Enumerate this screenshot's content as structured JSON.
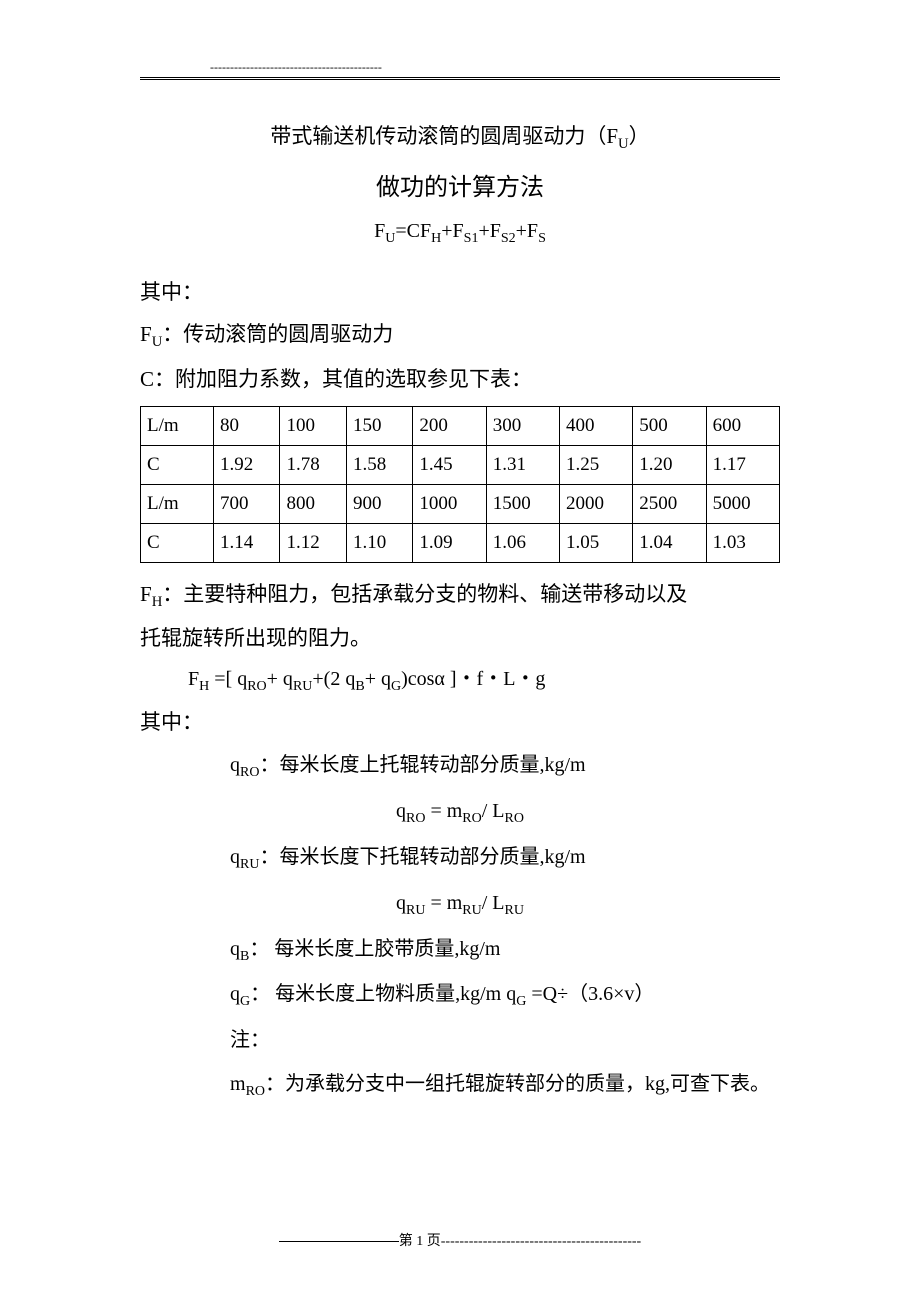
{
  "header": {
    "dash": "-------------------------------------------"
  },
  "titles": {
    "line1_pre": "带式输送机传动滚筒的圆周驱动力（F",
    "line1_sub": "U",
    "line1_post": "）",
    "line2": "做功的计算方法"
  },
  "main_formula": {
    "p1": "F",
    "s1": "U",
    "eq": "=CF",
    "s2": "H",
    "plus1": "+F",
    "s3": "S1",
    "plus2": "+F",
    "s4": "S2",
    "plus3": "+F",
    "s5": "S"
  },
  "where_label": "其中：",
  "fu_def": {
    "pre": "F",
    "sub": "U",
    "post": "：传动滚筒的圆周驱动力"
  },
  "c_def": "C：附加阻力系数，其值的选取参见下表：",
  "table": {
    "rows": [
      [
        "L/m",
        "80",
        "100",
        "150",
        "200",
        "300",
        "400",
        "500",
        "600"
      ],
      [
        "C",
        "1.92",
        "1.78",
        "1.58",
        "1.45",
        "1.31",
        "1.25",
        "1.20",
        "1.17"
      ],
      [
        "L/m",
        "700",
        "800",
        "900",
        "1000",
        "1500",
        "2000",
        "2500",
        "5000"
      ],
      [
        "C",
        "1.14",
        "1.12",
        "1.10",
        "1.09",
        "1.06",
        "1.05",
        "1.04",
        "1.03"
      ]
    ]
  },
  "fh_def": {
    "pre": "F",
    "sub": "H",
    "line1": "：主要特种阻力，包括承载分支的物料、输送带移动以及",
    "line2": "托辊旋转所出现的阻力。"
  },
  "fh_formula": {
    "p0": "F",
    "s0": "H",
    "p1": " =[ q",
    "s1": "RO",
    "p2": "+ q",
    "s2": "RU",
    "p3": "+(2 q",
    "s3": "B",
    "p4": "+ q",
    "s4": "G",
    "p5": ")cosα ]・f・L・g"
  },
  "where_label2": "其中：",
  "defs": {
    "qro": {
      "sym_pre": "q",
      "sym_sub": "RO",
      "text": "：每米长度上托辊转动部分质量,kg/m"
    },
    "qro_f": {
      "l_pre": "q",
      "l_sub": "RO",
      "mid": "  = m",
      "m_sub": "RO",
      "div": "/ L",
      "r_sub": "RO"
    },
    "qru": {
      "sym_pre": "q",
      "sym_sub": "RU",
      "text": "：每米长度下托辊转动部分质量,kg/m"
    },
    "qru_f": {
      "l_pre": "q",
      "l_sub": "RU",
      "mid": "  = m",
      "m_sub": "RU",
      "div": "/ L",
      "r_sub": "RU"
    },
    "qb": {
      "sym_pre": "q",
      "sym_sub": "B",
      "text": "： 每米长度上胶带质量,kg/m"
    },
    "qg": {
      "sym_pre": "q",
      "sym_sub": "G",
      "text": "： 每米长度上物料质量,kg/m   q",
      "sub2": "G",
      "tail": "  =Q÷（3.6×v）"
    },
    "note": "注：",
    "mro": {
      "sym_pre": "m",
      "sym_sub": "RO",
      "text": "：为承载分支中一组托辊旋转部分的质量，kg,可查下表。"
    }
  },
  "footer": {
    "label": "第  1  页",
    "dash": "-------------------------------------------"
  }
}
